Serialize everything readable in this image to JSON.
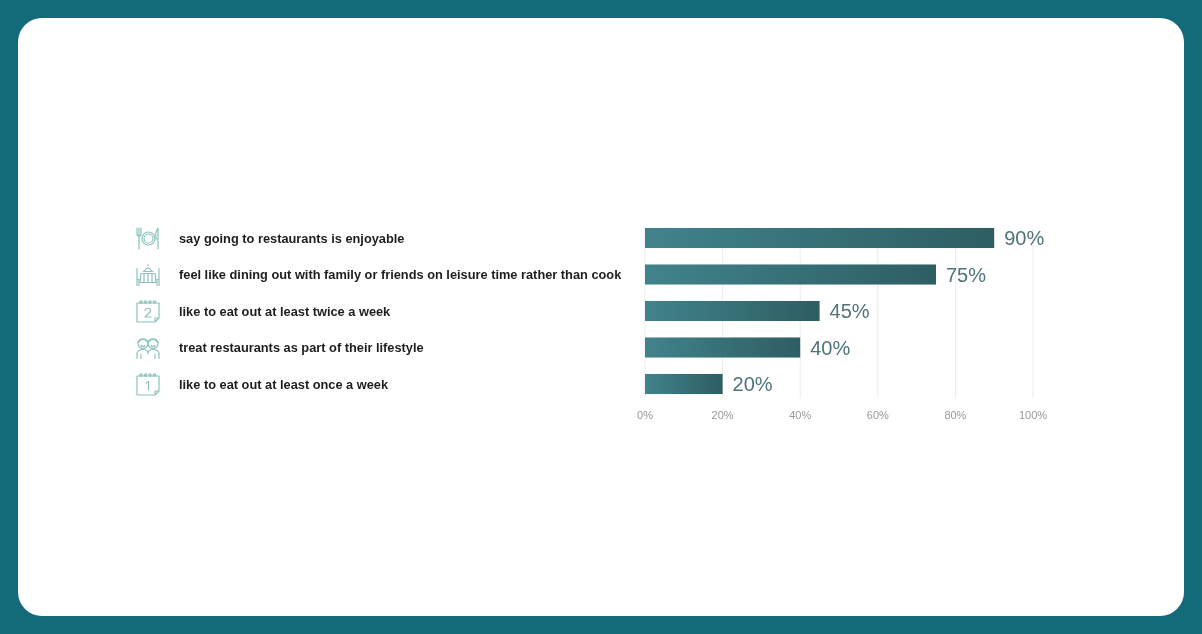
{
  "chart_data": {
    "type": "bar",
    "orientation": "horizontal",
    "categories": [
      "say going to restaurants is enjoyable",
      "feel like dining out with family or friends on leisure time rather than cook",
      "like to eat out at least twice a week",
      "treat restaurants as part of their lifestyle",
      "like to eat out at least once a week"
    ],
    "values": [
      90,
      75,
      45,
      40,
      20
    ],
    "value_labels": [
      "90%",
      "75%",
      "45%",
      "40%",
      "20%"
    ],
    "color": "#377077",
    "xlim": [
      0,
      100
    ],
    "xticks": [
      {
        "value": 0,
        "label": "0%"
      },
      {
        "value": 20,
        "label": "20%"
      },
      {
        "value": 40,
        "label": "40%"
      },
      {
        "value": 60,
        "label": "60%"
      },
      {
        "value": 80,
        "label": "80%"
      },
      {
        "value": 100,
        "label": "100%"
      }
    ],
    "grid": "x"
  }
}
